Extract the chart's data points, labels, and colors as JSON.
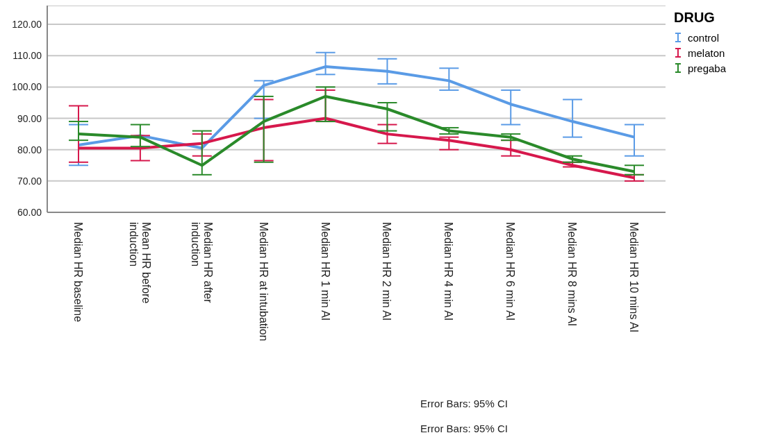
{
  "chart_data": {
    "type": "line",
    "legend_title": "DRUG",
    "legend": "top right",
    "grid": "y",
    "marker": "none",
    "line_style": "solid",
    "categories": [
      "Median HR baseline",
      "Mean HR before induction",
      "Median HR after induction",
      "Median HR at intubation",
      "Median HR 1 min AI",
      "Median HR 2 min AI",
      "Median HR 4 min AI",
      "Median HR 6 min AI",
      "Median HR 8 mins AI",
      "Median HR 10 mins AI"
    ],
    "ylim": [
      60,
      126
    ],
    "yticks": [
      {
        "value": 60,
        "label": "60.00"
      },
      {
        "value": 70,
        "label": "70.00"
      },
      {
        "value": 80,
        "label": "80.00"
      },
      {
        "value": 90,
        "label": "90.00"
      },
      {
        "value": 100,
        "label": "100.00"
      },
      {
        "value": 110,
        "label": "110.00"
      },
      {
        "value": 120,
        "label": "120.00"
      }
    ],
    "series": [
      {
        "name": "control",
        "color": "#5a9be6",
        "values": [
          81.5,
          84.5,
          80.5,
          100.5,
          106.5,
          105,
          102,
          94.5,
          89,
          84
        ],
        "errors": [
          [
            75,
            88
          ],
          null,
          null,
          [
            90,
            102
          ],
          [
            104,
            111
          ],
          [
            101,
            109
          ],
          [
            99,
            106
          ],
          [
            88,
            99
          ],
          [
            84,
            96
          ],
          [
            78,
            88
          ]
        ]
      },
      {
        "name": "melaton",
        "color": "#d6184c",
        "values": [
          80.5,
          80.5,
          82,
          87,
          90,
          85,
          83,
          80,
          75,
          71
        ],
        "errors": [
          [
            76,
            94
          ],
          [
            76.5,
            84.5
          ],
          [
            78,
            85
          ],
          [
            76.5,
            96
          ],
          [
            89,
            99
          ],
          [
            82,
            88
          ],
          [
            80,
            84
          ],
          [
            78,
            83
          ],
          [
            74.5,
            76
          ],
          [
            70,
            72
          ]
        ]
      },
      {
        "name": "pregaba",
        "color": "#2a8a2a",
        "values": [
          85,
          84,
          75,
          89,
          97,
          93,
          86,
          84,
          77,
          73
        ],
        "errors": [
          [
            83,
            89
          ],
          [
            81,
            88
          ],
          [
            72,
            86
          ],
          [
            76,
            97
          ],
          [
            89,
            100
          ],
          [
            86,
            95
          ],
          [
            85,
            87
          ],
          [
            83,
            85
          ],
          [
            76,
            78
          ],
          [
            72,
            75
          ]
        ]
      }
    ],
    "annotations": [
      "Error Bars: 95% CI",
      "Error Bars: 95% CI"
    ]
  }
}
